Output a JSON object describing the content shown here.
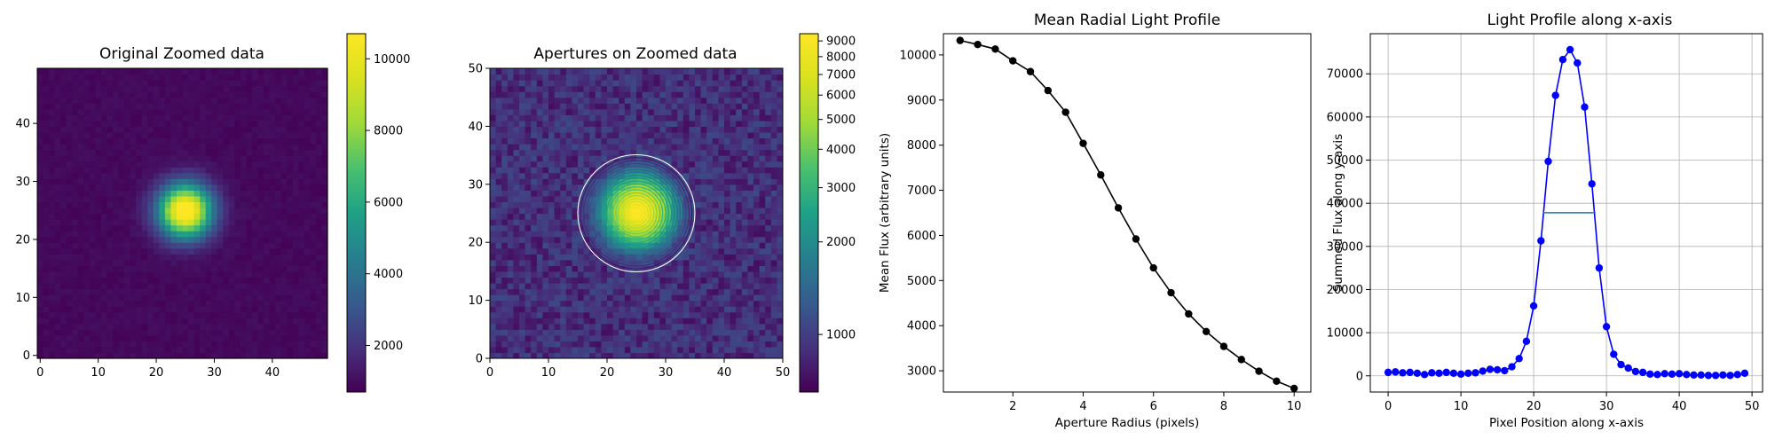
{
  "chart_data": [
    {
      "type": "heatmap",
      "title": "Original Zoomed data",
      "xlim": [
        -0.5,
        49.5
      ],
      "ylim": [
        -0.5,
        49.5
      ],
      "xticks": [
        0,
        10,
        20,
        30,
        40
      ],
      "yticks": [
        0,
        10,
        20,
        30,
        40
      ],
      "colormap": "viridis",
      "source": {
        "center": [
          25,
          25
        ],
        "peak": 10600,
        "sigma": 3.2,
        "background": 900
      },
      "colorbar": {
        "vmin": 700,
        "vmax": 10700,
        "ticks": [
          2000,
          4000,
          6000,
          8000,
          10000
        ]
      }
    },
    {
      "type": "heatmap",
      "title": "Apertures on Zoomed data",
      "xlim": [
        0,
        50
      ],
      "ylim": [
        0,
        50
      ],
      "xticks": [
        0,
        10,
        20,
        30,
        40,
        50
      ],
      "yticks": [
        0,
        10,
        20,
        30,
        40,
        50
      ],
      "colormap": "viridis",
      "scale": "log",
      "aperture_center": [
        25,
        25
      ],
      "aperture_radii": [
        0.5,
        1,
        1.5,
        2,
        2.5,
        3,
        3.5,
        4,
        4.5,
        5,
        5.5,
        6,
        6.5,
        7,
        7.5,
        8,
        8.5,
        9,
        9.5,
        10
      ],
      "colorbar": {
        "vmin": 650,
        "vmax": 9500,
        "ticks": [
          1000,
          2000,
          3000,
          4000,
          5000,
          6000,
          7000,
          8000,
          9000
        ]
      }
    },
    {
      "type": "line",
      "title": "Mean Radial Light Profile",
      "xlabel": "Aperture Radius (pixels)",
      "ylabel": "Mean Flux (arbitrary units)",
      "xlim": [
        0.025,
        10.475
      ],
      "ylim": [
        2530,
        10470
      ],
      "xticks": [
        2,
        4,
        6,
        8,
        10
      ],
      "yticks": [
        3000,
        4000,
        5000,
        6000,
        7000,
        8000,
        9000,
        10000
      ],
      "grid": false,
      "series": [
        {
          "color": "#000000",
          "x": [
            0.5,
            1,
            1.5,
            2,
            2.5,
            3,
            3.5,
            4,
            4.5,
            5,
            5.5,
            6,
            6.5,
            7,
            7.5,
            8,
            8.5,
            9,
            9.5,
            10
          ],
          "y": [
            10320,
            10230,
            10130,
            9870,
            9630,
            9210,
            8730,
            8040,
            7340,
            6610,
            5920,
            5280,
            4730,
            4260,
            3870,
            3540,
            3250,
            2990,
            2770,
            2610
          ]
        }
      ]
    },
    {
      "type": "line",
      "title": "Light Profile along x-axis",
      "xlabel": "Pixel Position along x-axis",
      "ylabel": "Summed Flux along y-axis",
      "xlim": [
        -2.45,
        51.45
      ],
      "ylim": [
        -3750,
        79300
      ],
      "xticks": [
        0,
        10,
        20,
        30,
        40,
        50
      ],
      "yticks": [
        0,
        10000,
        20000,
        30000,
        40000,
        50000,
        60000,
        70000
      ],
      "grid": true,
      "series": [
        {
          "color": "#0000ff",
          "x": [
            0,
            1,
            2,
            3,
            4,
            5,
            6,
            7,
            8,
            9,
            10,
            11,
            12,
            13,
            14,
            15,
            16,
            17,
            18,
            19,
            20,
            21,
            22,
            23,
            24,
            25,
            26,
            27,
            28,
            29,
            30,
            31,
            32,
            33,
            34,
            35,
            36,
            37,
            38,
            39,
            40,
            41,
            42,
            43,
            44,
            45,
            46,
            47,
            48,
            49
          ],
          "y": [
            800,
            900,
            700,
            800,
            600,
            300,
            700,
            600,
            800,
            600,
            400,
            600,
            700,
            1100,
            1500,
            1400,
            1200,
            2100,
            4000,
            8000,
            16200,
            31300,
            49700,
            65000,
            73300,
            75600,
            72500,
            62300,
            44500,
            25000,
            11400,
            5000,
            2600,
            1800,
            1000,
            800,
            400,
            300,
            500,
            400,
            500,
            300,
            200,
            200,
            100,
            100,
            200,
            100,
            300,
            600
          ]
        }
      ],
      "hline": {
        "y": 37800,
        "x1": 21.3,
        "x2": 28.5,
        "color": "#1f77b4"
      }
    }
  ]
}
